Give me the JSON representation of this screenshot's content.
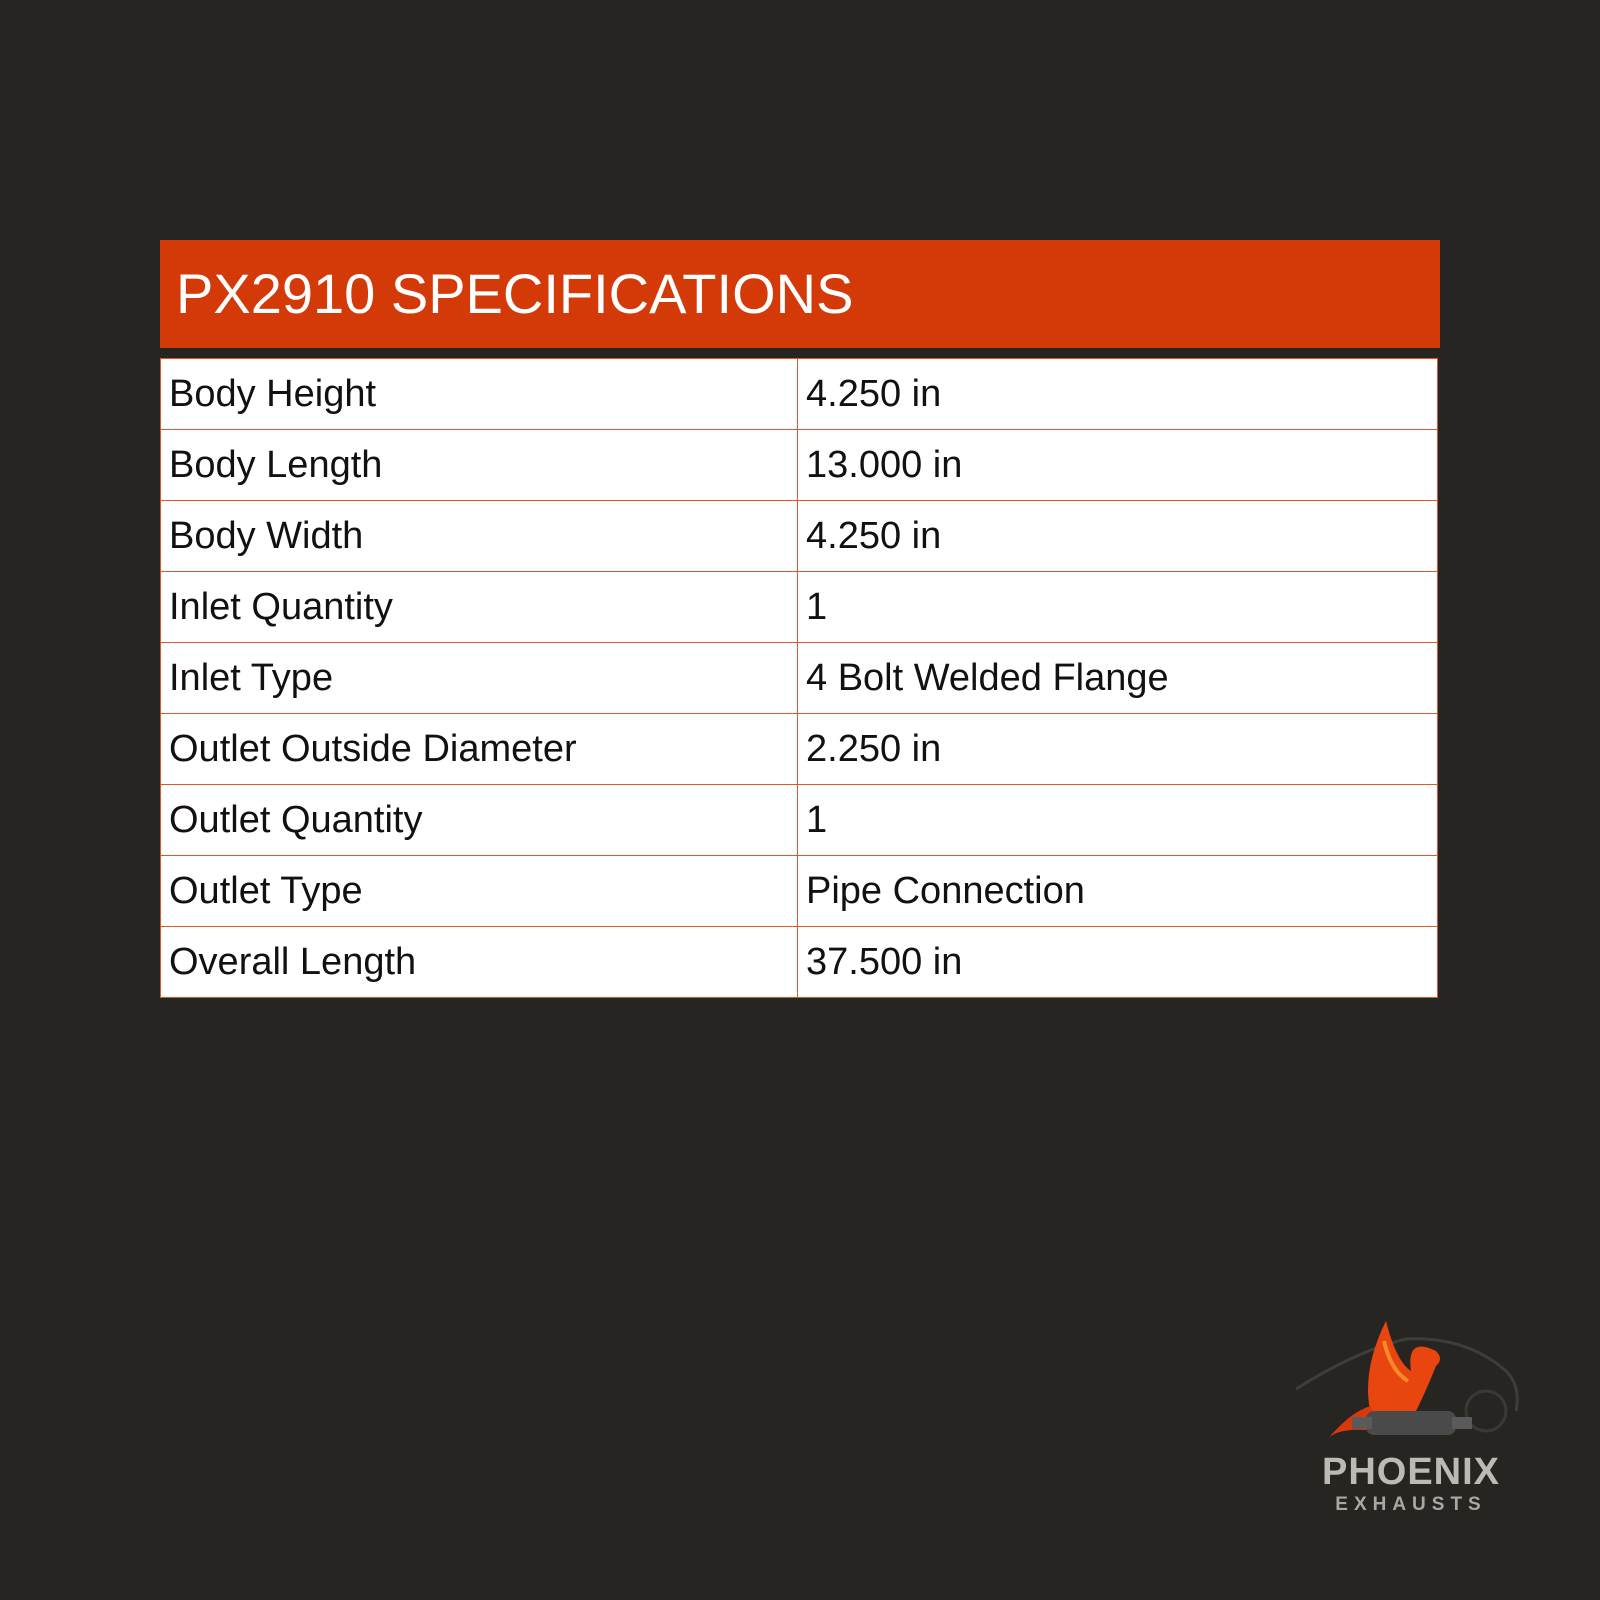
{
  "title": "PX2910 SPECIFICATIONS",
  "colors": {
    "accent": "#d33a08",
    "background": "#262522",
    "border": "#e0582a"
  },
  "specs": [
    {
      "label": "Body Height",
      "value": "4.250 in"
    },
    {
      "label": "Body Length",
      "value": "13.000 in"
    },
    {
      "label": "Body Width",
      "value": "4.250 in"
    },
    {
      "label": "Inlet Quantity",
      "value": "1"
    },
    {
      "label": "Inlet Type",
      "value": "4 Bolt Welded Flange"
    },
    {
      "label": "Outlet Outside Diameter",
      "value": "2.250 in"
    },
    {
      "label": "Outlet Quantity",
      "value": "1"
    },
    {
      "label": "Outlet Type",
      "value": "Pipe Connection"
    },
    {
      "label": "Overall Length",
      "value": "37.500 in"
    }
  ],
  "logo": {
    "name": "PHOENIX",
    "sub": "EXHAUSTS",
    "icon": "phoenix-on-catalytic-converter-icon"
  }
}
